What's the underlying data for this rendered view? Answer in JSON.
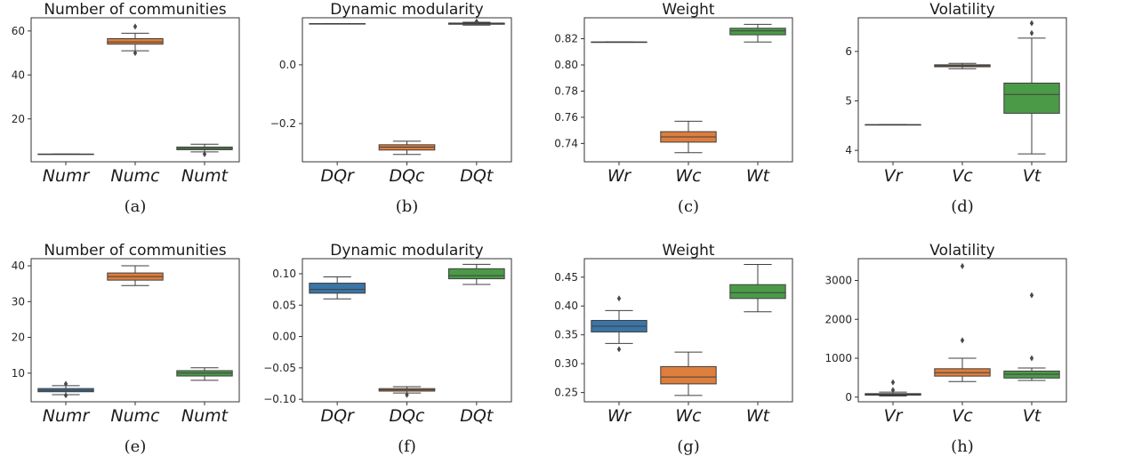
{
  "palette": {
    "r": "#3a75a6",
    "c": "#dd7e3c",
    "t": "#4b9a48"
  },
  "chart_data": [
    {
      "type": "box",
      "label": "(a)",
      "title": "Number of communities",
      "ylim": [
        0.5,
        66
      ],
      "yticks": [
        20,
        40,
        60
      ],
      "ytick_labels": [
        "20",
        "40",
        "60"
      ],
      "categories": [
        "Numr",
        "Numc",
        "Numt"
      ],
      "boxes": [
        {
          "name": "Numr",
          "whislo": 4.0,
          "q1": 4.0,
          "med": 4.0,
          "q3": 4.0,
          "whishi": 4.0,
          "fliers": [],
          "color": "#3a75a6"
        },
        {
          "name": "Numc",
          "whislo": 51.0,
          "q1": 54.0,
          "med": 55.0,
          "q3": 56.5,
          "whishi": 59.0,
          "fliers": [
            62.0,
            50.0
          ],
          "color": "#dd7e3c"
        },
        {
          "name": "Numt",
          "whislo": 5.0,
          "q1": 6.0,
          "med": 6.5,
          "q3": 7.2,
          "whishi": 8.5,
          "fliers": [
            4.0
          ],
          "color": "#4b9a48"
        }
      ]
    },
    {
      "type": "box",
      "label": "(b)",
      "title": "Dynamic modularity",
      "ylim": [
        -0.33,
        0.16
      ],
      "yticks": [
        0.0,
        -0.2
      ],
      "ytick_labels": [
        "0.0",
        "−0.2"
      ],
      "categories": [
        "DQr",
        "DQc",
        "DQt"
      ],
      "boxes": [
        {
          "name": "DQr",
          "whislo": 0.14,
          "q1": 0.14,
          "med": 0.14,
          "q3": 0.14,
          "whishi": 0.14,
          "fliers": [],
          "color": "#3a75a6"
        },
        {
          "name": "DQc",
          "whislo": -0.305,
          "q1": -0.29,
          "med": -0.28,
          "q3": -0.272,
          "whishi": -0.26,
          "fliers": [],
          "color": "#dd7e3c"
        },
        {
          "name": "DQt",
          "whislo": 0.135,
          "q1": 0.138,
          "med": 0.14,
          "q3": 0.142,
          "whishi": 0.145,
          "fliers": [
            0.147
          ],
          "color": "#4b9a48"
        }
      ]
    },
    {
      "type": "box",
      "label": "(c)",
      "title": "Weight",
      "ylim": [
        0.726,
        0.836
      ],
      "yticks": [
        0.74,
        0.76,
        0.78,
        0.8,
        0.82
      ],
      "ytick_labels": [
        "0.74",
        "0.76",
        "0.78",
        "0.80",
        "0.82"
      ],
      "categories": [
        "Wr",
        "Wc",
        "Wt"
      ],
      "boxes": [
        {
          "name": "Wr",
          "whislo": 0.8175,
          "q1": 0.8175,
          "med": 0.8175,
          "q3": 0.8175,
          "whishi": 0.8175,
          "fliers": [],
          "color": "#3a75a6"
        },
        {
          "name": "Wc",
          "whislo": 0.733,
          "q1": 0.741,
          "med": 0.745,
          "q3": 0.749,
          "whishi": 0.757,
          "fliers": [],
          "color": "#dd7e3c"
        },
        {
          "name": "Wt",
          "whislo": 0.8175,
          "q1": 0.823,
          "med": 0.826,
          "q3": 0.828,
          "whishi": 0.831,
          "fliers": [],
          "color": "#4b9a48"
        }
      ]
    },
    {
      "type": "box",
      "label": "(d)",
      "title": "Volatility",
      "ylim": [
        3.77,
        6.68
      ],
      "yticks": [
        4,
        5,
        6
      ],
      "ytick_labels": [
        "4",
        "5",
        "6"
      ],
      "categories": [
        "Vr",
        "Vc",
        "Vt"
      ],
      "boxes": [
        {
          "name": "Vr",
          "whislo": 4.52,
          "q1": 4.52,
          "med": 4.52,
          "q3": 4.52,
          "whishi": 4.52,
          "fliers": [],
          "color": "#3a75a6"
        },
        {
          "name": "Vc",
          "whislo": 5.65,
          "q1": 5.69,
          "med": 5.71,
          "q3": 5.73,
          "whishi": 5.76,
          "fliers": [],
          "color": "#dd7e3c"
        },
        {
          "name": "Vt",
          "whislo": 3.93,
          "q1": 4.75,
          "med": 5.13,
          "q3": 5.36,
          "whishi": 6.27,
          "fliers": [
            6.37,
            6.57
          ],
          "color": "#4b9a48"
        }
      ]
    },
    {
      "type": "box",
      "label": "(e)",
      "title": "Number of communities",
      "ylim": [
        2.0,
        42.0
      ],
      "yticks": [
        10,
        20,
        30,
        40
      ],
      "ytick_labels": [
        "10",
        "20",
        "30",
        "40"
      ],
      "categories": [
        "Numr",
        "Numc",
        "Numt"
      ],
      "boxes": [
        {
          "name": "Numr",
          "whislo": 4.0,
          "q1": 4.8,
          "med": 5.2,
          "q3": 5.7,
          "whishi": 6.5,
          "fliers": [
            3.8,
            7.0
          ],
          "color": "#3a75a6"
        },
        {
          "name": "Numc",
          "whislo": 34.5,
          "q1": 36.0,
          "med": 37.0,
          "q3": 38.0,
          "whishi": 40.0,
          "fliers": [],
          "color": "#dd7e3c"
        },
        {
          "name": "Numt",
          "whislo": 8.0,
          "q1": 9.2,
          "med": 10.0,
          "q3": 10.7,
          "whishi": 11.5,
          "fliers": [],
          "color": "#4b9a48"
        }
      ]
    },
    {
      "type": "box",
      "label": "(f)",
      "title": "Dynamic modularity",
      "ylim": [
        -0.104,
        0.124
      ],
      "yticks": [
        0.1,
        0.05,
        0.0,
        -0.05,
        -0.1
      ],
      "ytick_labels": [
        "0.10",
        "0.05",
        "0.00",
        "−0.05",
        "−0.10"
      ],
      "categories": [
        "DQr",
        "DQc",
        "DQt"
      ],
      "boxes": [
        {
          "name": "DQr",
          "whislo": 0.06,
          "q1": 0.069,
          "med": 0.075,
          "q3": 0.085,
          "whishi": 0.095,
          "fliers": [],
          "color": "#3a75a6"
        },
        {
          "name": "DQc",
          "whislo": -0.09,
          "q1": -0.087,
          "med": -0.085,
          "q3": -0.083,
          "whishi": -0.08,
          "fliers": [
            -0.093
          ],
          "color": "#dd7e3c"
        },
        {
          "name": "DQt",
          "whislo": 0.083,
          "q1": 0.092,
          "med": 0.097,
          "q3": 0.108,
          "whishi": 0.115,
          "fliers": [],
          "color": "#4b9a48"
        }
      ]
    },
    {
      "type": "box",
      "label": "(g)",
      "title": "Weight",
      "ylim": [
        0.234,
        0.482
      ],
      "yticks": [
        0.25,
        0.3,
        0.35,
        0.4,
        0.45
      ],
      "ytick_labels": [
        "0.25",
        "0.30",
        "0.35",
        "0.40",
        "0.45"
      ],
      "categories": [
        "Wr",
        "Wc",
        "Wt"
      ],
      "boxes": [
        {
          "name": "Wr",
          "whislo": 0.335,
          "q1": 0.355,
          "med": 0.365,
          "q3": 0.375,
          "whishi": 0.392,
          "fliers": [
            0.413,
            0.325
          ],
          "color": "#3a75a6"
        },
        {
          "name": "Wc",
          "whislo": 0.245,
          "q1": 0.265,
          "med": 0.277,
          "q3": 0.295,
          "whishi": 0.32,
          "fliers": [],
          "color": "#dd7e3c"
        },
        {
          "name": "Wt",
          "whislo": 0.39,
          "q1": 0.413,
          "med": 0.423,
          "q3": 0.437,
          "whishi": 0.472,
          "fliers": [],
          "color": "#4b9a48"
        }
      ]
    },
    {
      "type": "box",
      "label": "(h)",
      "title": "Volatility",
      "ylim": [
        -120,
        3560
      ],
      "yticks": [
        0,
        1000,
        2000,
        3000
      ],
      "ytick_labels": [
        "0",
        "1000",
        "2000",
        "3000"
      ],
      "categories": [
        "Vr",
        "Vc",
        "Vt"
      ],
      "boxes": [
        {
          "name": "Vr",
          "whislo": 30,
          "q1": 50,
          "med": 70,
          "q3": 90,
          "whishi": 130,
          "fliers": [
            380,
            180
          ],
          "color": "#3a75a6"
        },
        {
          "name": "Vc",
          "whislo": 400,
          "q1": 540,
          "med": 630,
          "q3": 730,
          "whishi": 1000,
          "fliers": [
            1460,
            3370
          ],
          "color": "#dd7e3c"
        },
        {
          "name": "Vt",
          "whislo": 430,
          "q1": 490,
          "med": 590,
          "q3": 670,
          "whishi": 750,
          "fliers": [
            1000,
            2620
          ],
          "color": "#4b9a48"
        }
      ]
    }
  ]
}
